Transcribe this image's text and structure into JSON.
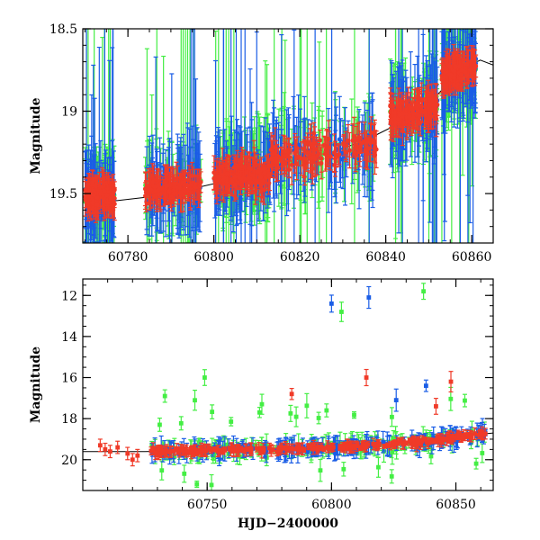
{
  "colors": {
    "blue": "#1a5de6",
    "green": "#44ee44",
    "red": "#f03a28",
    "curve": "#000000"
  },
  "chart_data": [
    {
      "type": "scatter",
      "panel": "top",
      "xlabel": "",
      "ylabel": "Magnitude",
      "xlim": [
        60769.5,
        60865
      ],
      "ylim": [
        19.8,
        18.5
      ],
      "inverted_y": true,
      "x_ticks": [
        60780,
        60800,
        60820,
        60840,
        60860
      ],
      "y_ticks": [
        18.5,
        19,
        19.5
      ],
      "x_tick_labels": [
        "60780",
        "60800",
        "60820",
        "60840",
        "60860"
      ],
      "y_tick_labels": [
        "18.5",
        "19",
        "19.5"
      ],
      "grid": false,
      "series": [
        {
          "color": "green",
          "marker": "circle with error bar"
        },
        {
          "color": "blue",
          "marker": "circle with error bar"
        },
        {
          "color": "red",
          "marker": "circle with error bar"
        }
      ],
      "trend_curve": {
        "x": [
          60769.5,
          60775,
          60785,
          60795,
          60805,
          60815,
          60825,
          60835,
          60845,
          60852,
          60858,
          60862,
          60865
        ],
        "y": [
          19.55,
          19.55,
          19.52,
          19.47,
          19.41,
          19.34,
          19.27,
          19.18,
          19.05,
          18.9,
          18.74,
          18.69,
          18.72
        ]
      },
      "clusters": [
        {
          "x": [
            60770,
            60777
          ],
          "y_center": 19.5,
          "spread": 0.1
        },
        {
          "x": [
            60784,
            60797
          ],
          "y_center": 19.45,
          "spread": 0.1
        },
        {
          "x": [
            60800,
            60813
          ],
          "y_center": 19.38,
          "spread": 0.12
        },
        {
          "x": [
            60813,
            60838
          ],
          "y_center": 19.25,
          "spread": 0.14
        },
        {
          "x": [
            60841,
            60852
          ],
          "y_center": 19.0,
          "spread": 0.12
        },
        {
          "x": [
            60853,
            60861
          ],
          "y_center": 18.75,
          "spread": 0.08
        }
      ]
    },
    {
      "type": "scatter",
      "panel": "bottom",
      "xlabel": "HJD−2400000",
      "ylabel": "Magnitude",
      "xlim": [
        60700,
        60865
      ],
      "ylim": [
        21.5,
        11.2
      ],
      "inverted_y": true,
      "x_ticks": [
        60750,
        60800,
        60850
      ],
      "y_ticks": [
        12,
        14,
        16,
        18,
        20
      ],
      "x_tick_labels": [
        "60750",
        "60800",
        "60850"
      ],
      "y_tick_labels": [
        "12",
        "14",
        "16",
        "18",
        "20"
      ],
      "grid": false,
      "series": [
        {
          "color": "green",
          "marker": "square with error bar"
        },
        {
          "color": "blue",
          "marker": "square with error bar"
        },
        {
          "color": "red",
          "marker": "square with error bar"
        }
      ],
      "trend_curve": {
        "x": [
          60700,
          60725,
          60750,
          60775,
          60800,
          60820,
          60840,
          60855,
          60865
        ],
        "y": [
          19.6,
          19.6,
          19.55,
          19.5,
          19.4,
          19.28,
          19.07,
          18.82,
          18.7
        ]
      },
      "early_red_points": [
        {
          "x": 60707,
          "y": 19.3
        },
        {
          "x": 60709,
          "y": 19.5
        },
        {
          "x": 60711,
          "y": 19.6
        },
        {
          "x": 60714,
          "y": 19.4
        },
        {
          "x": 60718,
          "y": 19.7
        },
        {
          "x": 60720,
          "y": 20.0
        },
        {
          "x": 60722,
          "y": 19.8
        }
      ],
      "outliers": [
        {
          "series": "blue",
          "x": 60800,
          "y": 12.4
        },
        {
          "series": "green",
          "x": 60804,
          "y": 12.8
        },
        {
          "series": "blue",
          "x": 60815,
          "y": 12.1
        },
        {
          "series": "green",
          "x": 60837,
          "y": 11.8
        },
        {
          "series": "green",
          "x": 60749,
          "y": 16.0
        },
        {
          "series": "green",
          "x": 60733,
          "y": 16.9
        },
        {
          "series": "red",
          "x": 60784,
          "y": 16.8
        },
        {
          "series": "red",
          "x": 60814,
          "y": 16.0
        },
        {
          "series": "red",
          "x": 60848,
          "y": 16.2
        },
        {
          "series": "blue",
          "x": 60838,
          "y": 16.4
        },
        {
          "series": "blue",
          "x": 60826,
          "y": 17.1
        },
        {
          "series": "green",
          "x": 60772,
          "y": 17.3
        },
        {
          "series": "green",
          "x": 60798,
          "y": 17.6
        },
        {
          "series": "red",
          "x": 60842,
          "y": 17.4
        }
      ]
    }
  ]
}
